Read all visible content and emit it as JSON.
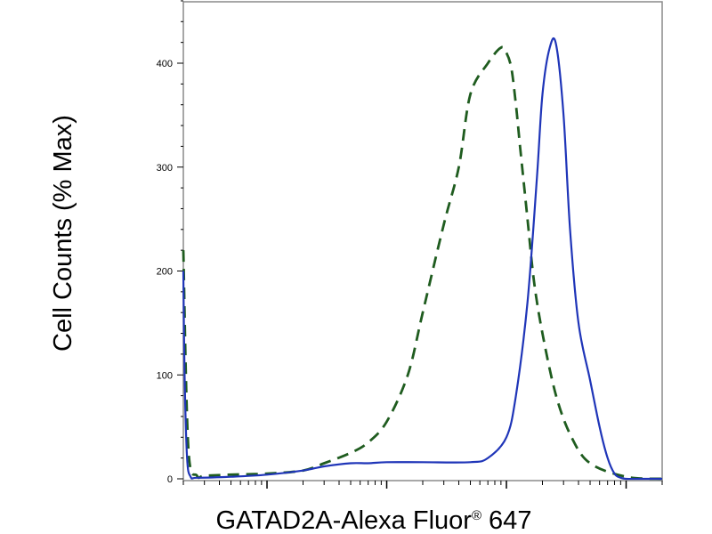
{
  "chart_data": {
    "type": "line",
    "title": "",
    "xlabel": "GATAD2A-Alexa Fluor",
    "xlabel_mark": "®",
    "xlabel_suffix": " 647",
    "ylabel": "Cell Counts (% Max)",
    "xscale": "log",
    "xlim": [
      200,
      2000000
    ],
    "ylim": [
      0,
      460
    ],
    "yticks": [
      0,
      100,
      200,
      300,
      400
    ],
    "ytick_labels": [
      "0",
      "100",
      "200",
      "300",
      "400"
    ],
    "grid": false,
    "legend": "none",
    "series": [
      {
        "style": "dashed",
        "color": "#1f5c1f",
        "x": [
          200,
          220,
          260,
          300,
          500,
          1000,
          2000,
          3000,
          5000,
          7000,
          10000,
          15000,
          20000,
          30000,
          40000,
          50000,
          70000,
          90000,
          100000,
          110000,
          120000,
          130000,
          150000,
          170000,
          200000,
          260000,
          350000,
          500000,
          1000000,
          2000000
        ],
        "y": [
          220,
          30,
          3,
          3,
          4,
          5,
          8,
          15,
          25,
          35,
          55,
          100,
          160,
          245,
          300,
          370,
          400,
          415,
          410,
          395,
          360,
          320,
          250,
          190,
          140,
          80,
          40,
          15,
          2,
          0
        ]
      },
      {
        "style": "solid",
        "color": "#1f35b8",
        "x": [
          200,
          205,
          215,
          230,
          260,
          500,
          1000,
          2000,
          3000,
          5000,
          7000,
          10000,
          20000,
          50000,
          70000,
          100000,
          120000,
          150000,
          180000,
          200000,
          230000,
          260000,
          300000,
          340000,
          400000,
          500000,
          600000,
          700000,
          800000,
          900000,
          1000000,
          1200000,
          2000000
        ],
        "y": [
          200,
          100,
          20,
          2,
          1,
          2,
          4,
          8,
          12,
          15,
          15,
          16,
          16,
          16,
          20,
          40,
          80,
          170,
          290,
          370,
          415,
          418,
          350,
          240,
          150,
          95,
          50,
          20,
          5,
          1,
          0,
          0,
          0
        ]
      }
    ]
  }
}
